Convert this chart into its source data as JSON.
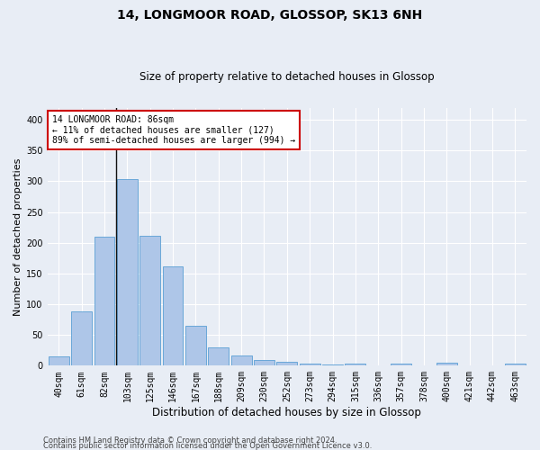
{
  "title1": "14, LONGMOOR ROAD, GLOSSOP, SK13 6NH",
  "title2": "Size of property relative to detached houses in Glossop",
  "xlabel": "Distribution of detached houses by size in Glossop",
  "ylabel": "Number of detached properties",
  "footer1": "Contains HM Land Registry data © Crown copyright and database right 2024.",
  "footer2": "Contains public sector information licensed under the Open Government Licence v3.0.",
  "annotation_line1": "14 LONGMOOR ROAD: 86sqm",
  "annotation_line2": "← 11% of detached houses are smaller (127)",
  "annotation_line3": "89% of semi-detached houses are larger (994) →",
  "bar_categories": [
    "40sqm",
    "61sqm",
    "82sqm",
    "103sqm",
    "125sqm",
    "146sqm",
    "167sqm",
    "188sqm",
    "209sqm",
    "230sqm",
    "252sqm",
    "273sqm",
    "294sqm",
    "315sqm",
    "336sqm",
    "357sqm",
    "378sqm",
    "400sqm",
    "421sqm",
    "442sqm",
    "463sqm"
  ],
  "bar_values": [
    15,
    89,
    210,
    304,
    212,
    161,
    65,
    30,
    16,
    10,
    6,
    4,
    2,
    3,
    1,
    4,
    1,
    5,
    1,
    1,
    3
  ],
  "bar_color": "#aec6e8",
  "bar_edge_color": "#5a9fd4",
  "vline_color": "#111111",
  "annotation_box_facecolor": "#ffffff",
  "annotation_box_edgecolor": "#cc0000",
  "bg_color": "#e8edf5",
  "grid_color": "#ffffff",
  "ylim": [
    0,
    420
  ],
  "yticks": [
    0,
    50,
    100,
    150,
    200,
    250,
    300,
    350,
    400
  ],
  "title1_fontsize": 10,
  "title2_fontsize": 8.5,
  "ylabel_fontsize": 8,
  "xlabel_fontsize": 8.5,
  "tick_fontsize": 7,
  "annotation_fontsize": 7,
  "footer_fontsize": 6
}
